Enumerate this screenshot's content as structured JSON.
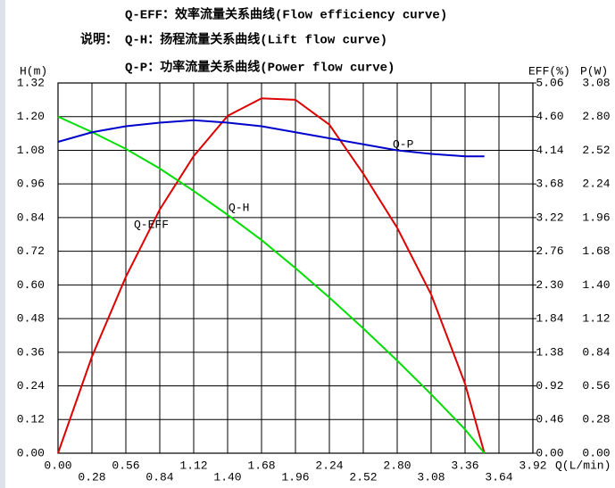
{
  "chart_data": {
    "type": "line",
    "title_lines": [
      "Q-EFF：效率流量关系曲线(Flow efficiency curve)",
      "Q-H：扬程流量关系曲线(Lift flow curve)",
      "Q-P：功率流量关系曲线(Power flow curve)"
    ],
    "legend_label": "说明：",
    "x_label": "Q(L/min)",
    "y_label": "H(m)",
    "y2_label": "EFF(%)",
    "y3_label": "P(W)",
    "x": [
      0,
      0.28,
      0.56,
      0.84,
      1.12,
      1.4,
      1.68,
      1.96,
      2.24,
      2.52,
      2.8,
      3.08,
      3.36,
      3.52
    ],
    "series": [
      {
        "name": "Q-EFF",
        "color": "#dd0000",
        "axis": "y2",
        "values": [
          0,
          1.32,
          2.41,
          3.33,
          4.06,
          4.61,
          4.85,
          4.83,
          4.49,
          3.82,
          3.08,
          2.17,
          0.95,
          0
        ]
      },
      {
        "name": "Q-H",
        "color": "#00dd00",
        "axis": "y",
        "values": [
          1.2,
          1.145,
          1.085,
          1.015,
          0.935,
          0.85,
          0.76,
          0.66,
          0.555,
          0.445,
          0.33,
          0.21,
          0.085,
          0
        ]
      },
      {
        "name": "Q-P",
        "color": "#0000cc",
        "axis": "y3",
        "values": [
          2.59,
          2.67,
          2.72,
          2.75,
          2.77,
          2.75,
          2.72,
          2.67,
          2.62,
          2.57,
          2.52,
          2.49,
          2.47,
          2.47
        ]
      }
    ],
    "xlim": [
      0,
      3.92
    ],
    "xticks": [
      {
        "value": 0,
        "label": "0.00"
      },
      0.28,
      0.56,
      0.84,
      1.12,
      {
        "value": 1.4,
        "label": "1.40"
      },
      1.68,
      1.96,
      2.24,
      2.52,
      {
        "value": 2.8,
        "label": "2.80"
      },
      3.08,
      3.36,
      3.64,
      3.92
    ],
    "ylim": [
      0,
      1.32
    ],
    "yticks": [
      {
        "value": 0,
        "label": "0.00"
      },
      0.12,
      0.24,
      0.36,
      0.48,
      {
        "value": 0.6,
        "label": "0.60"
      },
      0.72,
      0.84,
      0.96,
      1.08,
      {
        "value": 1.2,
        "label": "1.20"
      },
      1.32
    ],
    "y2lim": [
      0,
      5.06
    ],
    "y2ticks": [
      {
        "value": 0,
        "label": "0.00"
      },
      0.46,
      0.92,
      1.38,
      1.84,
      {
        "value": 2.3,
        "label": "2.30"
      },
      2.76,
      3.22,
      3.68,
      4.14,
      {
        "value": 4.6,
        "label": "4.60"
      },
      5.06
    ],
    "y3lim": [
      0,
      3.08
    ],
    "y3ticks": [
      {
        "value": 0,
        "label": "0.00"
      },
      0.28,
      0.56,
      0.84,
      1.12,
      {
        "value": 1.4,
        "label": "1.40"
      },
      1.68,
      1.96,
      2.24,
      2.52,
      {
        "value": 2.8,
        "label": "2.80"
      },
      3.08
    ],
    "grid": true
  }
}
